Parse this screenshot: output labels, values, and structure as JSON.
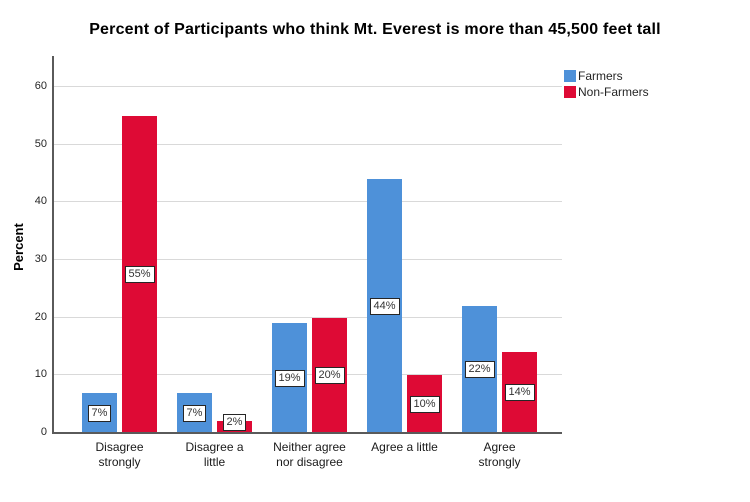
{
  "chart_data": {
    "type": "bar",
    "title": "Percent of Participants who think Mt. Everest is more than 45,500 feet tall",
    "ylabel": "Percent",
    "xlabel": "",
    "categories": [
      [
        "Disagree",
        "strongly"
      ],
      [
        "Disagree a",
        "little"
      ],
      [
        "Neither agree",
        "nor disagree"
      ],
      [
        "Agree a little"
      ],
      [
        "Agree",
        "strongly"
      ]
    ],
    "series": [
      {
        "name": "Farmers",
        "color": "#4E91D9",
        "values": [
          7,
          7,
          19,
          44,
          22
        ],
        "labels": [
          "7%",
          "7%",
          "19%",
          "44%",
          "22%"
        ]
      },
      {
        "name": "Non-Farmers",
        "color": "#DE0A35",
        "values": [
          55,
          2,
          20,
          10,
          14
        ],
        "labels": [
          "55%",
          "2%",
          "20%",
          "10%",
          "14%"
        ]
      }
    ],
    "y_ticks": [
      0,
      10,
      20,
      30,
      40,
      50,
      60
    ],
    "ylim": [
      0,
      65
    ],
    "grid": "horizontal",
    "legend_position": "top-right-outside",
    "value_labels_boxed": true
  },
  "colors": {
    "grid": "#D9D9D9",
    "axis": "#5A5A5A",
    "tick_text": "#262626",
    "label_box_bg": "#FFFFFF",
    "label_box_border": "#262626",
    "background": "#FFFFFF"
  }
}
